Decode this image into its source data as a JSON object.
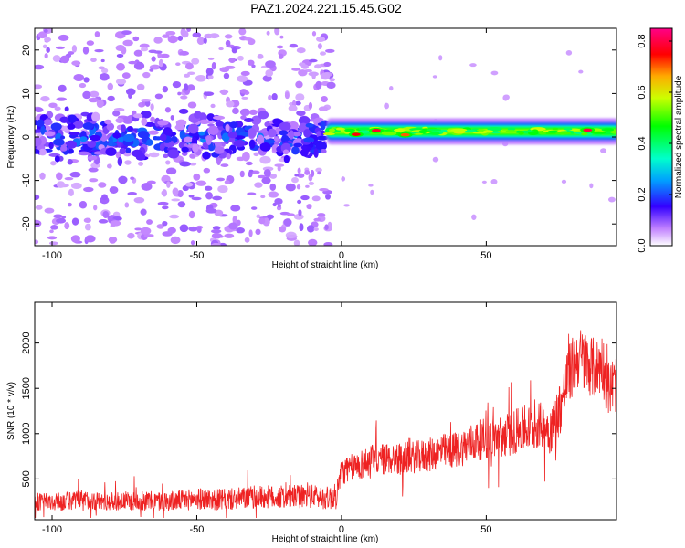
{
  "title": "PAZ1.2024.221.15.45.G02",
  "chart_data": [
    {
      "type": "heatmap",
      "xlabel": "Height of straight line (km)",
      "ylabel": "Frequency (Hz)",
      "xlim": [
        -106,
        95
      ],
      "ylim": [
        -25,
        25
      ],
      "x_ticks": [
        -100,
        -50,
        0,
        50
      ],
      "y_ticks": [
        -20,
        -10,
        0,
        10,
        20
      ],
      "colorbar": {
        "label": "Normalized spectral amplitude",
        "range": [
          0.0,
          0.85
        ],
        "ticks": [
          0.0,
          0.2,
          0.4,
          0.6,
          0.8
        ],
        "colormap": "rainbow"
      },
      "bands": [
        {
          "x_range": [
            -106,
            -5
          ],
          "y_center": 0,
          "y_halfwidth": 8,
          "level": 0.2
        },
        {
          "x_range": [
            -5,
            95
          ],
          "y_center": 1.3,
          "y_halfwidth": 1.5,
          "level": 0.5
        }
      ],
      "hotspots": [
        {
          "x": 5,
          "y": 0.6,
          "level": 0.75
        },
        {
          "x": 12,
          "y": 1.5,
          "level": 0.78
        },
        {
          "x": 22,
          "y": 0.5,
          "level": 0.7
        },
        {
          "x": 85,
          "y": 1.6,
          "level": 0.8
        }
      ]
    },
    {
      "type": "line",
      "xlabel": "Height of straight line (km)",
      "ylabel": "SNR (10 * v/v)",
      "xlim": [
        -106,
        95
      ],
      "ylim": [
        50,
        2450
      ],
      "x_ticks": [
        -100,
        -50,
        0,
        50
      ],
      "y_ticks": [
        500,
        1000,
        1500,
        2000
      ],
      "color": "#ee2222",
      "series": [
        {
          "x": [
            -106,
            -100,
            -90,
            -80,
            -70,
            -60,
            -50,
            -40,
            -30,
            -20,
            -10,
            -5,
            -2,
            0,
            2,
            5,
            10,
            15,
            20,
            25,
            30,
            35,
            40,
            45,
            50,
            55,
            60,
            65,
            70,
            72,
            74,
            76,
            78,
            80,
            82,
            84,
            86,
            88,
            90,
            92,
            95
          ],
          "values": [
            250,
            240,
            270,
            250,
            260,
            250,
            280,
            270,
            300,
            300,
            310,
            290,
            300,
            580,
            600,
            640,
            700,
            720,
            720,
            740,
            760,
            800,
            820,
            900,
            950,
            960,
            1020,
            1060,
            1100,
            1050,
            1150,
            1350,
            1600,
            1750,
            1850,
            1800,
            1750,
            1700,
            1800,
            1500,
            1550
          ],
          "noise": [
            100,
            100,
            110,
            100,
            110,
            110,
            120,
            120,
            130,
            130,
            130,
            130,
            150,
            150,
            150,
            160,
            180,
            180,
            180,
            180,
            190,
            200,
            200,
            220,
            230,
            240,
            250,
            260,
            260,
            280,
            300,
            320,
            340,
            340,
            340,
            340,
            340,
            340,
            340,
            320,
            320
          ]
        }
      ]
    }
  ]
}
